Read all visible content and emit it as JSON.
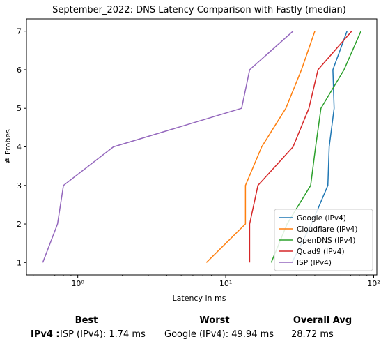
{
  "chart_data": {
    "type": "line",
    "title": "September_2022: DNS Latency Comparison with Fastly (median)",
    "xlabel": "Latency in ms",
    "ylabel": "# Probes",
    "xscale": "log",
    "xlim": [
      0.45,
      105
    ],
    "ylim": [
      0.68,
      7.32
    ],
    "xticks": [
      1,
      10,
      100
    ],
    "xtick_labels": [
      "10⁰",
      "10¹",
      "10²"
    ],
    "yticks": [
      1,
      2,
      3,
      4,
      5,
      6,
      7
    ],
    "grid": false,
    "legend_position": "lower-right",
    "series": [
      {
        "name": "Google (IPv4)",
        "color": "#1f77b4",
        "points": [
          [
            28,
            1
          ],
          [
            38,
            2
          ],
          [
            49,
            3
          ],
          [
            50,
            4
          ],
          [
            54,
            5
          ],
          [
            53,
            6
          ],
          [
            66,
            7
          ]
        ]
      },
      {
        "name": "Cloudflare (IPv4)",
        "color": "#ff7f0e",
        "points": [
          [
            7.4,
            1
          ],
          [
            13.6,
            2
          ],
          [
            13.6,
            3
          ],
          [
            17.5,
            4
          ],
          [
            25.5,
            5
          ],
          [
            32.5,
            6
          ],
          [
            40,
            7
          ]
        ]
      },
      {
        "name": "OpenDNS (IPv4)",
        "color": "#2ca02c",
        "points": [
          [
            20.3,
            1
          ],
          [
            26,
            2
          ],
          [
            37.5,
            3
          ],
          [
            40.5,
            4
          ],
          [
            44,
            5
          ],
          [
            63,
            6
          ],
          [
            82,
            7
          ]
        ]
      },
      {
        "name": "Quad9 (IPv4)",
        "color": "#d62728",
        "points": [
          [
            14.5,
            1
          ],
          [
            14.5,
            2
          ],
          [
            16.5,
            3
          ],
          [
            28.5,
            4
          ],
          [
            36.5,
            5
          ],
          [
            42,
            6
          ],
          [
            71,
            7
          ]
        ]
      },
      {
        "name": "ISP (IPv4)",
        "color": "#9467bd",
        "points": [
          [
            0.58,
            1
          ],
          [
            0.73,
            2
          ],
          [
            0.8,
            3
          ],
          [
            1.74,
            4
          ],
          [
            12.8,
            5
          ],
          [
            14.5,
            6
          ],
          [
            28.5,
            7
          ]
        ]
      }
    ]
  },
  "summary": {
    "best_header": "Best",
    "worst_header": "Worst",
    "avg_header": "Overall Avg",
    "row_label": "IPv4 :",
    "best_value": "ISP (IPv4): 1.74 ms",
    "worst_value": "Google (IPv4): 49.94 ms",
    "avg_value": "28.72 ms"
  }
}
